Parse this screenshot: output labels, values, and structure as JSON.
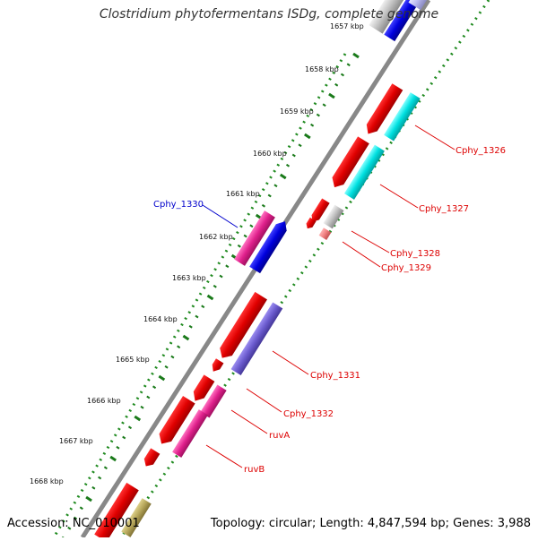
{
  "viewer": {
    "title": "Clostridium phytofermentans ISDg, complete genome",
    "accession": "Accession: NC_010001",
    "topology": "Topology: circular; Length: 4,847,594 bp; Genes: 3,988"
  },
  "ticks": [
    {
      "label": "1657 kbp"
    },
    {
      "label": "1658 kbp"
    },
    {
      "label": "1659 kbp"
    },
    {
      "label": "1660 kbp"
    },
    {
      "label": "1661 kbp"
    },
    {
      "label": "1662 kbp"
    },
    {
      "label": "1663 kbp"
    },
    {
      "label": "1664 kbp"
    },
    {
      "label": "1665 kbp"
    },
    {
      "label": "1666 kbp"
    },
    {
      "label": "1667 kbp"
    },
    {
      "label": "1668 kbp"
    }
  ],
  "gene_labels": [
    {
      "name": "Cphy_1326",
      "color": "#dd0000"
    },
    {
      "name": "Cphy_1327",
      "color": "#dd0000"
    },
    {
      "name": "Cphy_1328",
      "color": "#dd0000"
    },
    {
      "name": "Cphy_1329",
      "color": "#dd0000"
    },
    {
      "name": "Cphy_1330",
      "color": "#0000cc"
    },
    {
      "name": "Cphy_1331",
      "color": "#dd0000"
    },
    {
      "name": "Cphy_1332",
      "color": "#dd0000"
    },
    {
      "name": "ruvA",
      "color": "#dd0000"
    },
    {
      "name": "ruvB",
      "color": "#dd0000"
    }
  ],
  "colors": {
    "cds_red": "#ee0000",
    "cds_cyan": "#00e5e5",
    "cds_blue": "#0000dd",
    "cds_magenta": "#e0208c",
    "cds_purple": "#6a5acd",
    "cds_grey": "#bfbfbf",
    "cds_olive": "#b5a55a",
    "backbone": "#888888",
    "tick_green": "#1a7a1a",
    "gc_green": "#1f8a1f"
  }
}
